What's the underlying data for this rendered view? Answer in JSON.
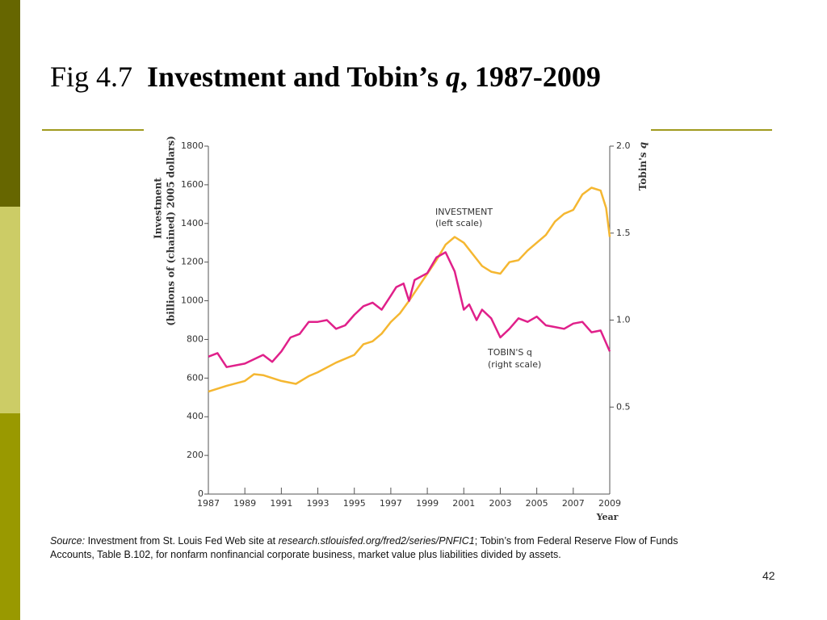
{
  "header": {
    "fig": "Fig 4.7",
    "title": "Investment and Tobin’s",
    "title_q": "q",
    "title_suffix": ", 1987-2009"
  },
  "chart_data": {
    "type": "line",
    "ylabel": [
      "Investment",
      "(billions of  (chained) 2005 dollars)"
    ],
    "y2label": "Tobin's",
    "y2label_q": "q",
    "xlabel": "Year",
    "xlim": [
      1987,
      2009
    ],
    "xticks": [
      1987,
      1989,
      1991,
      1993,
      1995,
      1997,
      1999,
      2001,
      2003,
      2005,
      2007,
      2009
    ],
    "ylim": [
      0,
      1800
    ],
    "yticks": [
      0,
      200,
      400,
      600,
      800,
      1000,
      1200,
      1400,
      1600,
      1800
    ],
    "y2lim": [
      0,
      2
    ],
    "y2ticks": [
      0.5,
      {
        "value": 1,
        "label": "1.0"
      },
      1.5,
      {
        "value": 2,
        "label": "2.0"
      }
    ],
    "series": [
      {
        "name": "INVESTMENT",
        "color": "#f5b731",
        "x": [
          1987,
          1988,
          1989,
          1989.5,
          1990,
          1991,
          1991.8,
          1992.5,
          1993,
          1994,
          1995,
          1995.5,
          1996,
          1996.5,
          1997,
          1997.5,
          1998,
          1998.5,
          1999,
          1999.5,
          2000,
          2000.5,
          2001,
          2001.5,
          2002,
          2002.5,
          2003,
          2003.5,
          2004,
          2004.5,
          2005,
          2005.5,
          2006,
          2006.5,
          2007,
          2007.5,
          2008,
          2008.5,
          2008.8,
          2009
        ],
        "values": [
          530,
          560,
          585,
          620,
          615,
          585,
          570,
          610,
          630,
          680,
          720,
          775,
          790,
          830,
          890,
          935,
          1000,
          1070,
          1140,
          1210,
          1290,
          1330,
          1300,
          1240,
          1180,
          1150,
          1140,
          1200,
          1210,
          1260,
          1300,
          1340,
          1410,
          1450,
          1470,
          1550,
          1585,
          1570,
          1480,
          1330
        ]
      },
      {
        "name": "TOBIN'S q",
        "color": "#e0208a",
        "axis": "y2",
        "x": [
          1987,
          1987.5,
          1988,
          1989,
          1990,
          1990.5,
          1991,
          1991.5,
          1992,
          1992.5,
          1993,
          1993.5,
          1994,
          1994.5,
          1995,
          1995.5,
          1996,
          1996.5,
          1997,
          1997.3,
          1997.7,
          1998,
          1998.3,
          1999,
          1999.5,
          2000,
          2000.5,
          2001,
          2001.3,
          2001.7,
          2002,
          2002.5,
          2003,
          2003.5,
          2004,
          2004.5,
          2005,
          2005.5,
          2006,
          2006.5,
          2007,
          2007.5,
          2008,
          2008.5,
          2009
        ],
        "values": [
          0.79,
          0.81,
          0.73,
          0.75,
          0.8,
          0.76,
          0.82,
          0.9,
          0.92,
          0.99,
          0.99,
          1.0,
          0.95,
          0.97,
          1.03,
          1.08,
          1.1,
          1.06,
          1.14,
          1.19,
          1.21,
          1.11,
          1.23,
          1.27,
          1.36,
          1.39,
          1.28,
          1.06,
          1.09,
          1.0,
          1.06,
          1.01,
          0.9,
          0.95,
          1.01,
          0.99,
          1.02,
          0.97,
          0.96,
          0.95,
          0.98,
          0.99,
          0.93,
          0.94,
          0.82
        ]
      }
    ],
    "annotations": [
      [
        "INVESTMENT",
        "(left scale)"
      ],
      [
        "TOBIN'S q",
        "(right scale)"
      ]
    ]
  },
  "footer": {
    "source_label": "Source:",
    "source_text1": "Investment from St. Louis Fed Web site at",
    "source_url": "research.stlouisfed.org/fred2/series/PNFIC1",
    "source_text2": "; Tobin’s from Federal Reserve Flow of Funds Accounts, Table B.102, for nonfarm nonfinancial corporate business, market value plus liabilities divided by assets.",
    "page": "42"
  }
}
